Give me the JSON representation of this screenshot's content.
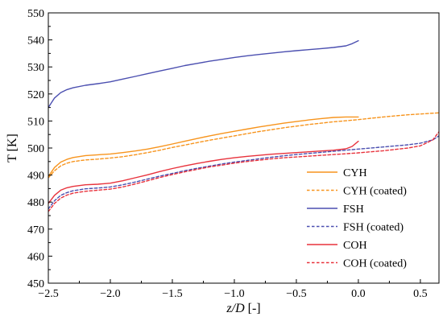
{
  "chart_data": {
    "type": "line",
    "xlabel_italic": "z/D",
    "xlabel_unit": " [-]",
    "ylabel": "T [K]",
    "xlim": [
      -2.5,
      0.65
    ],
    "ylim": [
      450,
      550
    ],
    "xticks": [
      -2.5,
      -2.0,
      -1.5,
      -1.0,
      -0.5,
      0.0,
      0.5
    ],
    "xtick_labels": [
      "−2.5",
      "−2.0",
      "−1.5",
      "−1.0",
      "−0.5",
      "0.0",
      "0.5"
    ],
    "yticks": [
      450,
      460,
      470,
      480,
      490,
      500,
      510,
      520,
      530,
      540,
      550
    ],
    "ytick_labels": [
      "450",
      "460",
      "470",
      "480",
      "490",
      "500",
      "510",
      "520",
      "530",
      "540",
      "550"
    ],
    "grid": false,
    "legend_position": "lower-right",
    "series": [
      {
        "name": "CYH",
        "color": "#f7941d",
        "dash": "solid",
        "x": [
          -2.5,
          -2.45,
          -2.4,
          -2.35,
          -2.3,
          -2.2,
          -2.1,
          -2.0,
          -1.9,
          -1.8,
          -1.7,
          -1.6,
          -1.5,
          -1.4,
          -1.3,
          -1.2,
          -1.1,
          -1.0,
          -0.9,
          -0.8,
          -0.7,
          -0.6,
          -0.5,
          -0.4,
          -0.3,
          -0.2,
          -0.1,
          0.0
        ],
        "y": [
          489.5,
          492.8,
          494.8,
          495.8,
          496.5,
          497.2,
          497.5,
          497.8,
          498.3,
          498.9,
          499.6,
          500.5,
          501.5,
          502.5,
          503.5,
          504.5,
          505.4,
          506.2,
          507.0,
          507.8,
          508.5,
          509.2,
          509.8,
          510.4,
          510.9,
          511.3,
          511.5,
          511.5
        ]
      },
      {
        "name": "CYH (coated)",
        "color": "#f7941d",
        "dash": "dashed",
        "x": [
          -2.5,
          -2.45,
          -2.4,
          -2.35,
          -2.3,
          -2.2,
          -2.1,
          -2.0,
          -1.9,
          -1.8,
          -1.7,
          -1.6,
          -1.5,
          -1.4,
          -1.3,
          -1.2,
          -1.1,
          -1.0,
          -0.9,
          -0.8,
          -0.7,
          -0.6,
          -0.5,
          -0.4,
          -0.3,
          -0.2,
          -0.1,
          0.0,
          0.1,
          0.2,
          0.3,
          0.4,
          0.5,
          0.6,
          0.65
        ],
        "y": [
          489.0,
          491.6,
          493.4,
          494.4,
          495.0,
          495.6,
          495.9,
          496.3,
          496.8,
          497.5,
          498.3,
          499.2,
          500.2,
          501.1,
          502.0,
          502.9,
          503.7,
          504.5,
          505.3,
          506.1,
          506.8,
          507.5,
          508.1,
          508.7,
          509.2,
          509.7,
          510.1,
          510.5,
          511.0,
          511.5,
          511.9,
          512.3,
          512.6,
          512.9,
          513.0
        ]
      },
      {
        "name": "FSH",
        "color": "#4b4fb0",
        "dash": "solid",
        "x": [
          -2.5,
          -2.45,
          -2.4,
          -2.35,
          -2.3,
          -2.2,
          -2.1,
          -2.0,
          -1.9,
          -1.8,
          -1.7,
          -1.6,
          -1.5,
          -1.4,
          -1.3,
          -1.2,
          -1.1,
          -1.0,
          -0.9,
          -0.8,
          -0.7,
          -0.6,
          -0.5,
          -0.4,
          -0.3,
          -0.2,
          -0.1,
          -0.05,
          0.0
        ],
        "y": [
          515.0,
          518.5,
          520.5,
          521.6,
          522.3,
          523.2,
          523.8,
          524.5,
          525.5,
          526.5,
          527.5,
          528.5,
          529.5,
          530.5,
          531.3,
          532.1,
          532.8,
          533.5,
          534.1,
          534.6,
          535.1,
          535.6,
          536.0,
          536.4,
          536.8,
          537.2,
          537.8,
          538.6,
          539.7
        ]
      },
      {
        "name": "FSH (coated)",
        "color": "#4b4fb0",
        "dash": "dashed",
        "x": [
          -2.5,
          -2.45,
          -2.4,
          -2.35,
          -2.3,
          -2.2,
          -2.1,
          -2.0,
          -1.9,
          -1.8,
          -1.7,
          -1.6,
          -1.5,
          -1.4,
          -1.3,
          -1.2,
          -1.1,
          -1.0,
          -0.9,
          -0.8,
          -0.7,
          -0.6,
          -0.5,
          -0.4,
          -0.3,
          -0.2,
          -0.1,
          0.0,
          0.1,
          0.2,
          0.3,
          0.4,
          0.5,
          0.6,
          0.65
        ],
        "y": [
          477.5,
          480.5,
          482.5,
          483.5,
          484.2,
          484.9,
          485.2,
          485.6,
          486.4,
          487.4,
          488.5,
          489.6,
          490.6,
          491.6,
          492.5,
          493.3,
          494.1,
          494.8,
          495.4,
          496.0,
          496.6,
          497.1,
          497.6,
          498.0,
          498.4,
          498.8,
          499.2,
          499.6,
          500.0,
          500.4,
          500.8,
          501.2,
          501.8,
          503.0,
          504.5
        ]
      },
      {
        "name": "COH",
        "color": "#e8323c",
        "dash": "solid",
        "x": [
          -2.5,
          -2.45,
          -2.4,
          -2.35,
          -2.3,
          -2.2,
          -2.1,
          -2.0,
          -1.9,
          -1.8,
          -1.7,
          -1.6,
          -1.5,
          -1.4,
          -1.3,
          -1.2,
          -1.1,
          -1.0,
          -0.9,
          -0.8,
          -0.7,
          -0.6,
          -0.5,
          -0.4,
          -0.3,
          -0.2,
          -0.1,
          -0.05,
          0.0
        ],
        "y": [
          479.5,
          482.5,
          484.4,
          485.3,
          485.8,
          486.4,
          486.6,
          487.0,
          487.9,
          489.0,
          490.1,
          491.3,
          492.4,
          493.4,
          494.3,
          495.1,
          495.8,
          496.4,
          496.9,
          497.3,
          497.7,
          498.0,
          498.3,
          498.6,
          498.9,
          499.2,
          499.7,
          500.6,
          502.5
        ]
      },
      {
        "name": "COH (coated)",
        "color": "#e8323c",
        "dash": "dashed",
        "x": [
          -2.5,
          -2.45,
          -2.4,
          -2.35,
          -2.3,
          -2.2,
          -2.1,
          -2.0,
          -1.9,
          -1.8,
          -1.7,
          -1.6,
          -1.5,
          -1.4,
          -1.3,
          -1.2,
          -1.1,
          -1.0,
          -0.9,
          -0.8,
          -0.7,
          -0.6,
          -0.5,
          -0.4,
          -0.3,
          -0.2,
          -0.1,
          0.0,
          0.1,
          0.2,
          0.3,
          0.4,
          0.5,
          0.6,
          0.65
        ],
        "y": [
          476.5,
          479.5,
          481.5,
          482.6,
          483.3,
          484.0,
          484.4,
          484.8,
          485.6,
          486.7,
          487.9,
          489.1,
          490.2,
          491.2,
          492.1,
          493.0,
          493.7,
          494.4,
          495.0,
          495.5,
          496.0,
          496.4,
          496.7,
          497.0,
          497.3,
          497.6,
          497.9,
          498.2,
          498.6,
          499.0,
          499.5,
          500.0,
          500.8,
          503.0,
          506.0
        ]
      }
    ]
  }
}
